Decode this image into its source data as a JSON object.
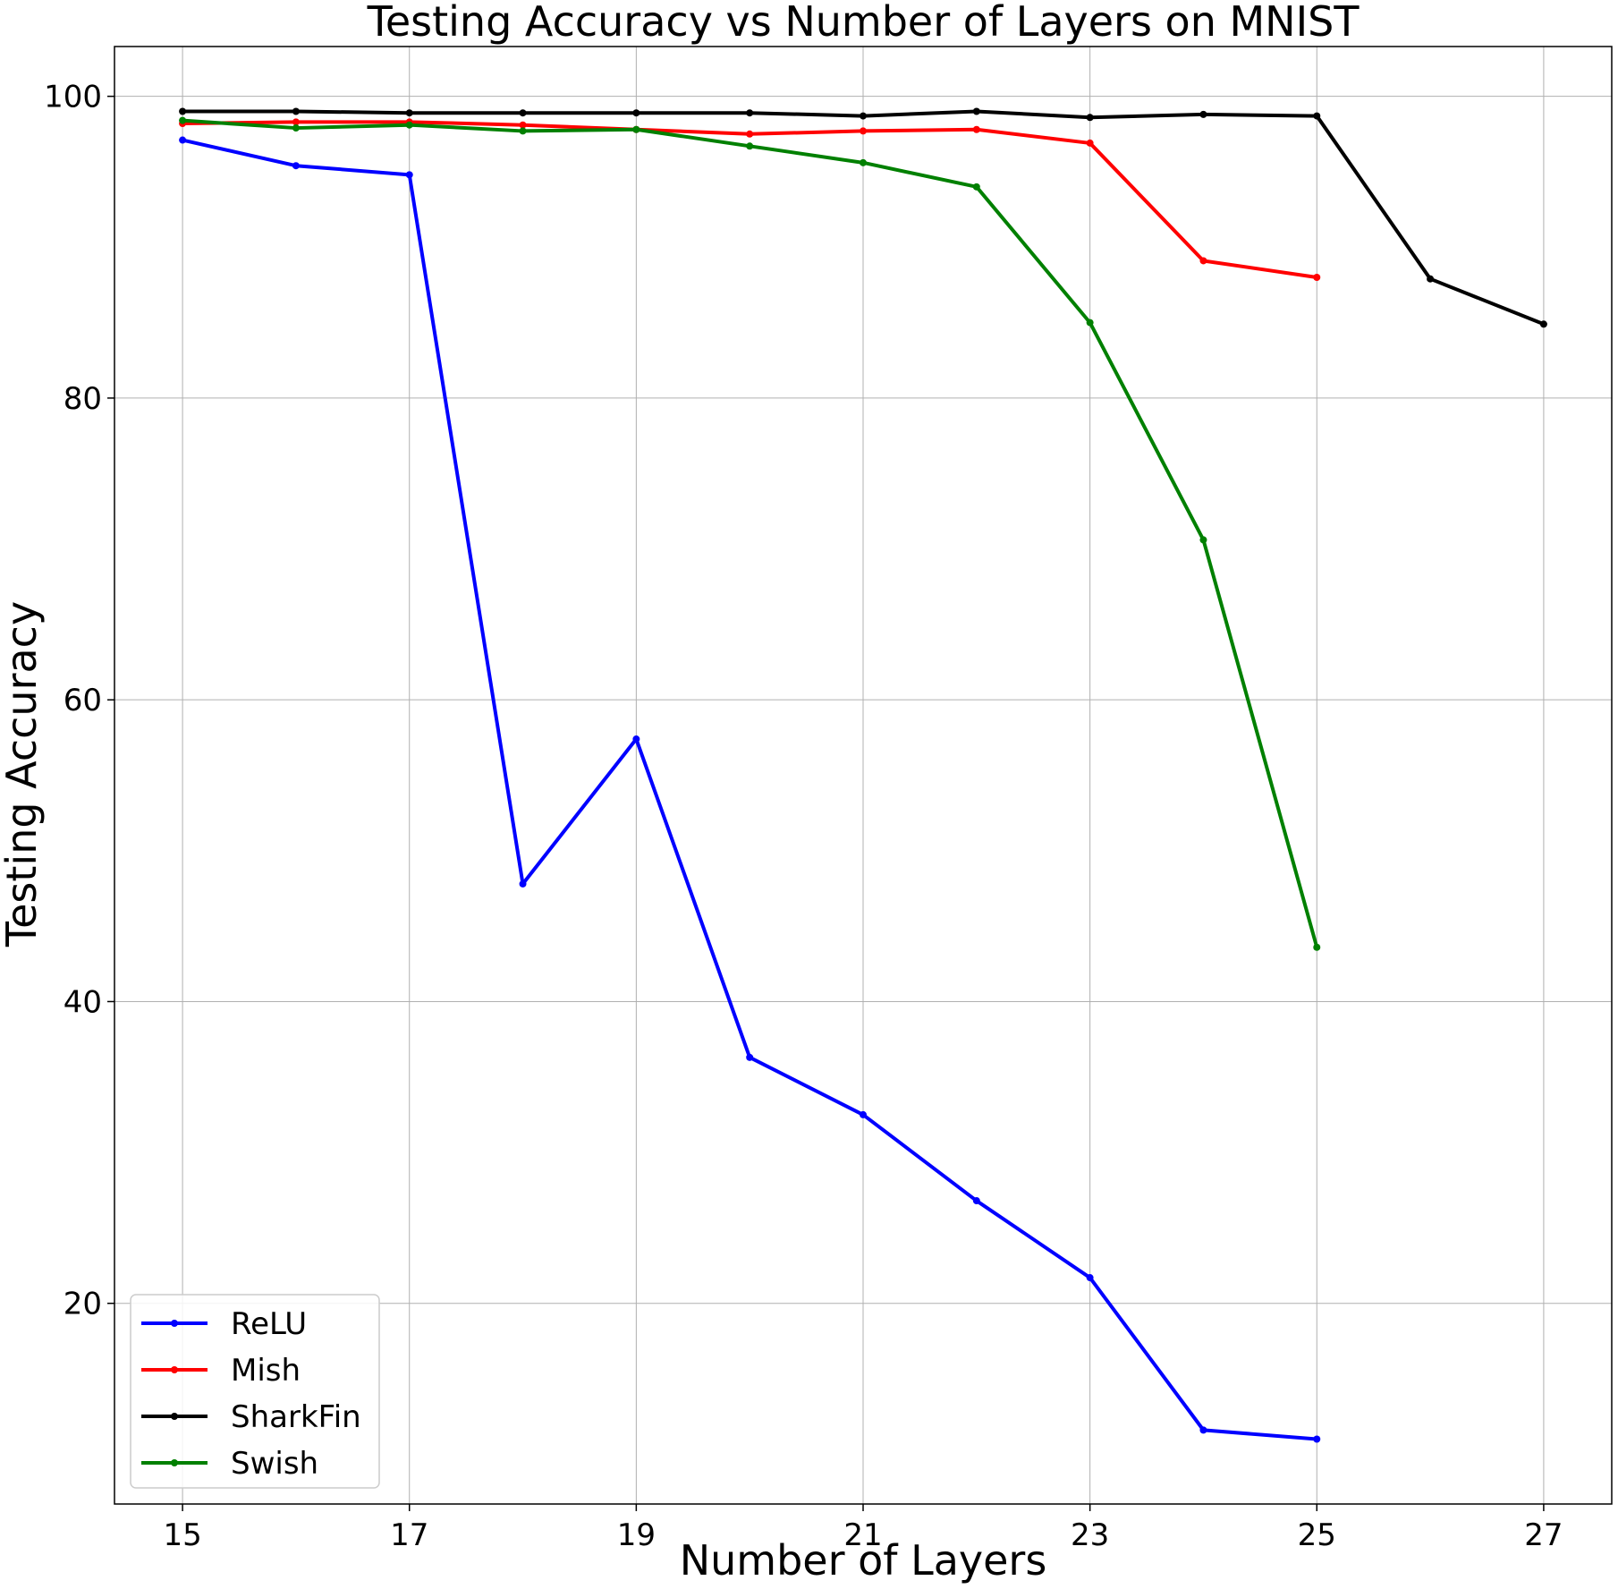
{
  "chart_data": {
    "type": "line",
    "title": "Testing Accuracy vs Number of Layers on MNIST",
    "xlabel": "Number of Layers",
    "ylabel": "Testing Accuracy",
    "xlim": [
      14.4,
      27.6
    ],
    "ylim": [
      6.7,
      103.3
    ],
    "xticks": [
      15,
      17,
      19,
      21,
      23,
      25,
      27
    ],
    "yticks": [
      20,
      40,
      60,
      80,
      100
    ],
    "grid": true,
    "legend_position": "lower-left",
    "series": [
      {
        "name": "ReLU",
        "color": "#0000ff",
        "x": [
          15,
          16,
          17,
          18,
          19,
          20,
          21,
          22,
          23,
          24,
          25
        ],
        "y": [
          97.1,
          95.4,
          94.8,
          47.8,
          57.4,
          36.3,
          32.5,
          26.8,
          21.7,
          11.6,
          11.0
        ]
      },
      {
        "name": "Mish",
        "color": "#ff0000",
        "x": [
          15,
          16,
          17,
          18,
          19,
          20,
          21,
          22,
          23,
          24,
          25
        ],
        "y": [
          98.2,
          98.3,
          98.3,
          98.1,
          97.8,
          97.5,
          97.7,
          97.8,
          96.9,
          89.1,
          88.0
        ]
      },
      {
        "name": "SharkFin",
        "color": "#000000",
        "x": [
          15,
          16,
          17,
          18,
          19,
          20,
          21,
          22,
          23,
          24,
          25,
          26,
          27
        ],
        "y": [
          99.0,
          99.0,
          98.9,
          98.9,
          98.9,
          98.9,
          98.7,
          99.0,
          98.6,
          98.8,
          98.7,
          87.9,
          84.9
        ]
      },
      {
        "name": "Swish",
        "color": "#008000",
        "x": [
          15,
          16,
          17,
          18,
          19,
          20,
          21,
          22,
          23,
          24,
          25
        ],
        "y": [
          98.4,
          97.9,
          98.1,
          97.7,
          97.8,
          96.7,
          95.6,
          94.0,
          85.0,
          70.6,
          43.6
        ]
      }
    ]
  }
}
